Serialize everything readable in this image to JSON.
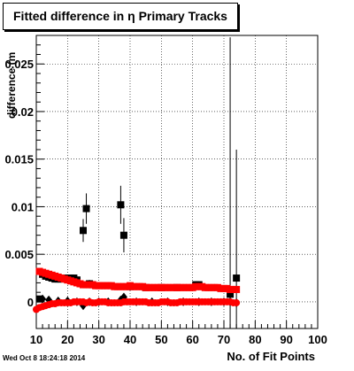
{
  "window": {
    "title": "Fitted difference in  η Primary Tracks",
    "timestamp": "Wed Oct  8 18:24:18 2014"
  },
  "chart_data": {
    "type": "scatter",
    "title": "Fitted difference in  η Primary Tracks",
    "xlabel": "No. of Fit Points",
    "ylabel": "difference (m",
    "xlim": [
      10,
      100
    ],
    "ylim": [
      -0.0028,
      0.028
    ],
    "xticks": [
      10,
      20,
      30,
      40,
      50,
      60,
      70,
      80,
      90,
      100
    ],
    "yticks": [
      0,
      0.005,
      0.01,
      0.015,
      0.02,
      0.025
    ],
    "ytick_labels": [
      "0",
      "0.005",
      "0.01",
      "0.015",
      "0.02",
      "0.025"
    ],
    "grid": true,
    "series": [
      {
        "marker": "black-square",
        "color": "#000000",
        "points": [
          {
            "x": 11,
            "y": 0.0003,
            "err": 0.0001
          },
          {
            "x": 12,
            "y": 0.0029,
            "err": 0.0002
          },
          {
            "x": 13,
            "y": 0.0027,
            "err": 0.0002
          },
          {
            "x": 14,
            "y": 0.0026,
            "err": 0.0002
          },
          {
            "x": 15,
            "y": 0.0025,
            "err": 0.0002
          },
          {
            "x": 16,
            "y": 0.0024,
            "err": 0.0002
          },
          {
            "x": 17,
            "y": 0.0024,
            "err": 0.0002
          },
          {
            "x": 18,
            "y": 0.0024,
            "err": 0.0002
          },
          {
            "x": 19,
            "y": 0.0025,
            "err": 0.0002
          },
          {
            "x": 20,
            "y": 0.0024,
            "err": 0.0003
          },
          {
            "x": 21,
            "y": 0.0025,
            "err": 0.0003
          },
          {
            "x": 22,
            "y": 0.0025,
            "err": 0.0003
          },
          {
            "x": 23,
            "y": 0.0023,
            "err": 0.0003
          },
          {
            "x": 25,
            "y": 0.0075,
            "err": 0.0012
          },
          {
            "x": 26,
            "y": 0.0098,
            "err": 0.0016
          },
          {
            "x": 27,
            "y": 0.0019,
            "err": 0.0004
          },
          {
            "x": 28,
            "y": 0.0018,
            "err": 0.0004
          },
          {
            "x": 37,
            "y": 0.0102,
            "err": 0.002
          },
          {
            "x": 38,
            "y": 0.007,
            "err": 0.0018
          },
          {
            "x": 40,
            "y": 0.0016,
            "err": 0.0004
          },
          {
            "x": 45,
            "y": 0.0015,
            "err": 0.0003
          },
          {
            "x": 50,
            "y": 0.0015,
            "err": 0.0003
          },
          {
            "x": 55,
            "y": 0.0015,
            "err": 0.0003
          },
          {
            "x": 61,
            "y": 0.0018,
            "err": 0.0003
          },
          {
            "x": 62,
            "y": 0.0018,
            "err": 0.0003
          },
          {
            "x": 72,
            "y": 0.0008,
            "err": 0.027
          },
          {
            "x": 74,
            "y": 0.0025,
            "err": 0.0135
          }
        ]
      },
      {
        "marker": "red-square",
        "color": "#ff0000",
        "points": [
          {
            "x": 11,
            "y": 0.0032
          },
          {
            "x": 12,
            "y": 0.0031
          },
          {
            "x": 13,
            "y": 0.003
          },
          {
            "x": 14,
            "y": 0.0029
          },
          {
            "x": 15,
            "y": 0.0028
          },
          {
            "x": 16,
            "y": 0.0027
          },
          {
            "x": 17,
            "y": 0.0026
          },
          {
            "x": 18,
            "y": 0.0025
          },
          {
            "x": 19,
            "y": 0.0024
          },
          {
            "x": 20,
            "y": 0.0023
          },
          {
            "x": 21,
            "y": 0.0022
          },
          {
            "x": 22,
            "y": 0.0021
          },
          {
            "x": 23,
            "y": 0.002
          },
          {
            "x": 24,
            "y": 0.0019
          },
          {
            "x": 25,
            "y": 0.0018
          },
          {
            "x": 26,
            "y": 0.0018
          },
          {
            "x": 27,
            "y": 0.0018
          },
          {
            "x": 28,
            "y": 0.0018
          },
          {
            "x": 29,
            "y": 0.0017
          },
          {
            "x": 30,
            "y": 0.0017
          },
          {
            "x": 31,
            "y": 0.0017
          },
          {
            "x": 32,
            "y": 0.0017
          },
          {
            "x": 33,
            "y": 0.0017
          },
          {
            "x": 34,
            "y": 0.0017
          },
          {
            "x": 35,
            "y": 0.0016
          },
          {
            "x": 36,
            "y": 0.0016
          },
          {
            "x": 37,
            "y": 0.0016
          },
          {
            "x": 38,
            "y": 0.0016
          },
          {
            "x": 39,
            "y": 0.0016
          },
          {
            "x": 40,
            "y": 0.0017
          },
          {
            "x": 41,
            "y": 0.0016
          },
          {
            "x": 42,
            "y": 0.0016
          },
          {
            "x": 43,
            "y": 0.0016
          },
          {
            "x": 44,
            "y": 0.0016
          },
          {
            "x": 45,
            "y": 0.0015
          },
          {
            "x": 46,
            "y": 0.0015
          },
          {
            "x": 47,
            "y": 0.0015
          },
          {
            "x": 48,
            "y": 0.0015
          },
          {
            "x": 49,
            "y": 0.0015
          },
          {
            "x": 50,
            "y": 0.0015
          },
          {
            "x": 51,
            "y": 0.0015
          },
          {
            "x": 52,
            "y": 0.0015
          },
          {
            "x": 53,
            "y": 0.0015
          },
          {
            "x": 54,
            "y": 0.0015
          },
          {
            "x": 55,
            "y": 0.0015
          },
          {
            "x": 56,
            "y": 0.0015
          },
          {
            "x": 57,
            "y": 0.0015
          },
          {
            "x": 58,
            "y": 0.0015
          },
          {
            "x": 59,
            "y": 0.0015
          },
          {
            "x": 60,
            "y": 0.0015
          },
          {
            "x": 61,
            "y": 0.0016
          },
          {
            "x": 62,
            "y": 0.0016
          },
          {
            "x": 63,
            "y": 0.0016
          },
          {
            "x": 64,
            "y": 0.0015
          },
          {
            "x": 65,
            "y": 0.0015
          },
          {
            "x": 66,
            "y": 0.0015
          },
          {
            "x": 67,
            "y": 0.0015
          },
          {
            "x": 68,
            "y": 0.0015
          },
          {
            "x": 69,
            "y": 0.0014
          },
          {
            "x": 70,
            "y": 0.0014
          },
          {
            "x": 71,
            "y": 0.0014
          },
          {
            "x": 72,
            "y": 0.0013
          },
          {
            "x": 73,
            "y": 0.0013
          },
          {
            "x": 74,
            "y": 0.0013
          }
        ]
      },
      {
        "marker": "black-diamond",
        "color": "#000000",
        "points": [
          {
            "x": 12,
            "y": 0.0003
          },
          {
            "x": 14,
            "y": 0.0002
          },
          {
            "x": 17,
            "y": 0.0001
          },
          {
            "x": 20,
            "y": 0.0001
          },
          {
            "x": 23,
            "y": 0.0
          },
          {
            "x": 25,
            "y": -0.0004
          },
          {
            "x": 27,
            "y": 0.0
          },
          {
            "x": 30,
            "y": 0.0
          },
          {
            "x": 33,
            "y": 0.0
          },
          {
            "x": 37,
            "y": 0.0002
          },
          {
            "x": 38,
            "y": 0.0005
          },
          {
            "x": 42,
            "y": 0.0
          },
          {
            "x": 47,
            "y": 0.0
          },
          {
            "x": 52,
            "y": 0.0
          },
          {
            "x": 57,
            "y": 0.0
          },
          {
            "x": 62,
            "y": 0.0
          },
          {
            "x": 66,
            "y": 0.0
          },
          {
            "x": 70,
            "y": 0.0
          },
          {
            "x": 72,
            "y": 0.0
          },
          {
            "x": 74,
            "y": -0.0001
          }
        ]
      },
      {
        "marker": "red-circle",
        "color": "#ff0000",
        "points": [
          {
            "x": 10,
            "y": -0.0008
          },
          {
            "x": 11,
            "y": -0.0006
          },
          {
            "x": 12,
            "y": -0.0005
          },
          {
            "x": 13,
            "y": -0.0004
          },
          {
            "x": 14,
            "y": -0.0003
          },
          {
            "x": 15,
            "y": -0.0002
          },
          {
            "x": 16,
            "y": -0.0002
          },
          {
            "x": 17,
            "y": -0.0001
          },
          {
            "x": 18,
            "y": -0.0001
          },
          {
            "x": 19,
            "y": -0.0001
          },
          {
            "x": 20,
            "y": -0.0001
          },
          {
            "x": 21,
            "y": -0.0001
          },
          {
            "x": 22,
            "y": 0.0
          },
          {
            "x": 23,
            "y": 0.0
          },
          {
            "x": 24,
            "y": 0.0
          },
          {
            "x": 25,
            "y": 0.0
          },
          {
            "x": 26,
            "y": -0.0001
          },
          {
            "x": 27,
            "y": 0.0
          },
          {
            "x": 28,
            "y": -0.0001
          },
          {
            "x": 29,
            "y": -0.0001
          },
          {
            "x": 30,
            "y": 0.0
          },
          {
            "x": 31,
            "y": 0.0
          },
          {
            "x": 32,
            "y": 0.0
          },
          {
            "x": 33,
            "y": -0.0001
          },
          {
            "x": 34,
            "y": -0.0001
          },
          {
            "x": 35,
            "y": -0.0001
          },
          {
            "x": 36,
            "y": -0.0001
          },
          {
            "x": 37,
            "y": -0.0001
          },
          {
            "x": 38,
            "y": 0.0
          },
          {
            "x": 39,
            "y": 0.0
          },
          {
            "x": 40,
            "y": 0.0
          },
          {
            "x": 41,
            "y": 0.0
          },
          {
            "x": 42,
            "y": 0.0
          },
          {
            "x": 43,
            "y": 0.0
          },
          {
            "x": 44,
            "y": 0.0
          },
          {
            "x": 45,
            "y": 0.0
          },
          {
            "x": 46,
            "y": -0.0001
          },
          {
            "x": 47,
            "y": -0.0001
          },
          {
            "x": 48,
            "y": -0.0001
          },
          {
            "x": 49,
            "y": -0.0001
          },
          {
            "x": 50,
            "y": 0.0
          },
          {
            "x": 51,
            "y": 0.0
          },
          {
            "x": 52,
            "y": 0.0
          },
          {
            "x": 53,
            "y": -0.0001
          },
          {
            "x": 54,
            "y": -0.0001
          },
          {
            "x": 55,
            "y": -0.0001
          },
          {
            "x": 56,
            "y": 0.0
          },
          {
            "x": 57,
            "y": 0.0
          },
          {
            "x": 58,
            "y": 0.0
          },
          {
            "x": 59,
            "y": 0.0
          },
          {
            "x": 60,
            "y": 0.0
          },
          {
            "x": 61,
            "y": 0.0
          },
          {
            "x": 62,
            "y": 0.0
          },
          {
            "x": 63,
            "y": 0.0
          },
          {
            "x": 64,
            "y": 0.0
          },
          {
            "x": 65,
            "y": 0.0
          },
          {
            "x": 66,
            "y": 0.0
          },
          {
            "x": 67,
            "y": 0.0
          },
          {
            "x": 68,
            "y": 0.0
          },
          {
            "x": 69,
            "y": 0.0
          },
          {
            "x": 70,
            "y": 0.0
          },
          {
            "x": 71,
            "y": 0.0
          },
          {
            "x": 72,
            "y": 0.0
          },
          {
            "x": 73,
            "y": -0.0001
          },
          {
            "x": 74,
            "y": -0.0001
          }
        ]
      }
    ]
  }
}
